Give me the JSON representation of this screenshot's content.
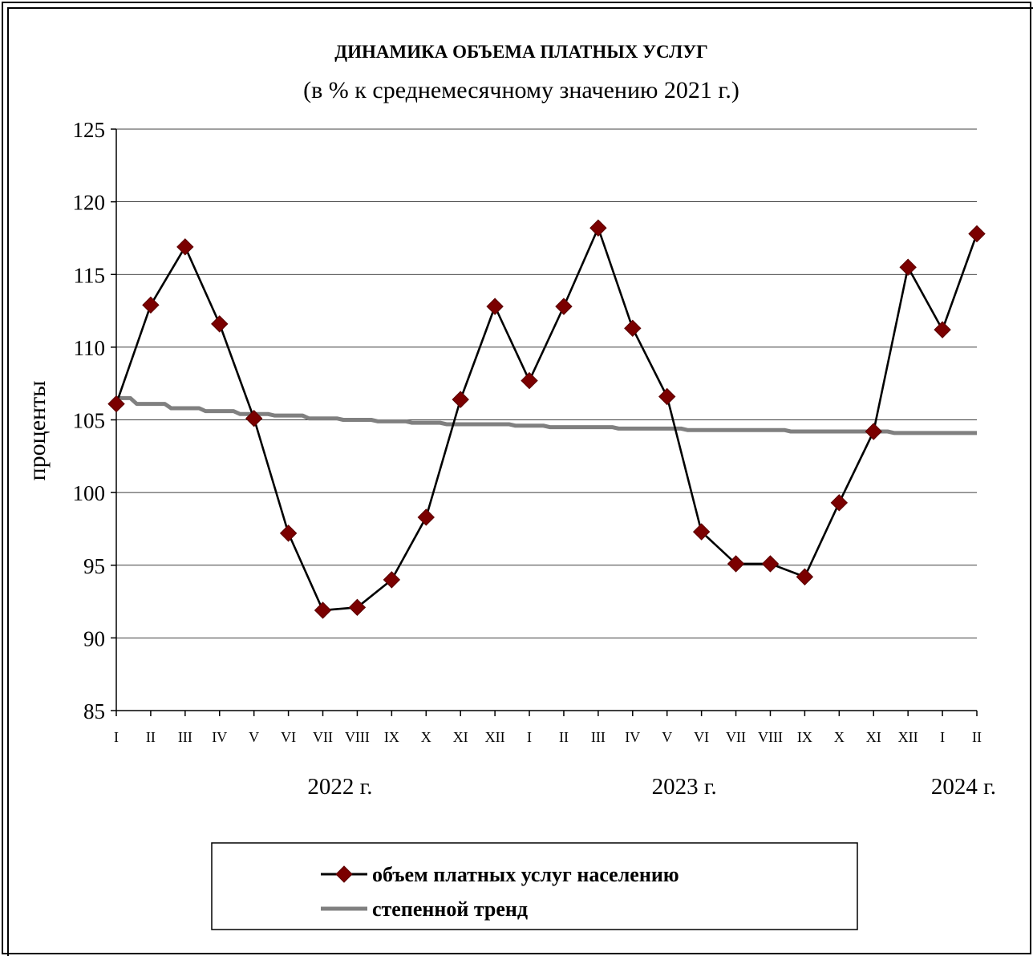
{
  "chart_data": {
    "type": "line",
    "title": "ДИНАМИКА ОБЪЕМА ПЛАТНЫХ УСЛУГ",
    "subtitle": "(в % к среднемесячному значению 2021 г.)",
    "xlabel": "",
    "ylabel": "проценты",
    "ylim": [
      85,
      125
    ],
    "yticks": [
      85,
      90,
      95,
      100,
      105,
      110,
      115,
      120,
      125
    ],
    "grid": true,
    "legend_position": "bottom",
    "categories": [
      "I",
      "II",
      "III",
      "IV",
      "V",
      "VI",
      "VII",
      "VIII",
      "IX",
      "X",
      "XI",
      "XII",
      "I",
      "II",
      "III",
      "IV",
      "V",
      "VI",
      "VII",
      "VIII",
      "IX",
      "X",
      "XI",
      "XII",
      "I",
      "II"
    ],
    "year_labels": [
      {
        "label": "2022 г.",
        "index": 6.5
      },
      {
        "label": "2023 г.",
        "index": 16.5
      },
      {
        "label": "2024 г.",
        "index": 25
      }
    ],
    "series": [
      {
        "name": "объем платных услуг населению",
        "color": "#7B0000",
        "marker": "diamond",
        "values": [
          106.1,
          112.9,
          116.9,
          111.6,
          105.1,
          97.2,
          91.9,
          92.1,
          94.0,
          98.3,
          106.4,
          112.8,
          107.7,
          112.8,
          118.2,
          111.3,
          106.6,
          97.3,
          95.1,
          95.1,
          94.2,
          99.3,
          104.2,
          115.5,
          111.2,
          117.8
        ]
      },
      {
        "name": "степенной тренд",
        "color": "#808080",
        "marker": "none",
        "values": [
          106.5,
          106.1,
          105.8,
          105.6,
          105.4,
          105.3,
          105.1,
          105.0,
          104.9,
          104.8,
          104.7,
          104.7,
          104.6,
          104.5,
          104.5,
          104.4,
          104.4,
          104.3,
          104.3,
          104.3,
          104.2,
          104.2,
          104.2,
          104.1,
          104.1,
          104.1
        ]
      }
    ]
  }
}
